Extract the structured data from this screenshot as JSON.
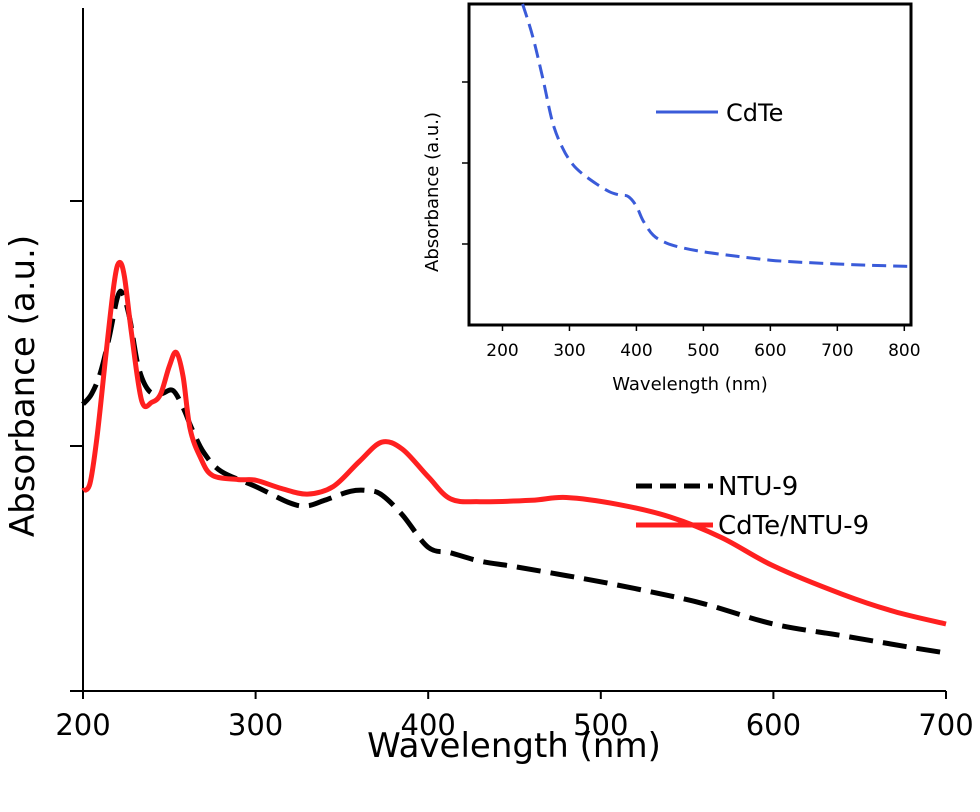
{
  "chart_data": [
    {
      "type": "line",
      "xlabel": "Wavelength (nm)",
      "ylabel": "Absorbance (a.u.)",
      "xlim": [
        200,
        700
      ],
      "ylim": [
        0,
        1
      ],
      "x_ticks": [
        "200",
        "300",
        "400",
        "500",
        "600",
        "700"
      ],
      "y_ticks_labeled": false,
      "legend_position": "right",
      "series": [
        {
          "name": "NTU-9",
          "style": "dashed",
          "color": "#000000",
          "points": [
            [
              200,
              0.415
            ],
            [
              205,
              0.43
            ],
            [
              210,
              0.46
            ],
            [
              215,
              0.51
            ],
            [
              220,
              0.57
            ],
            [
              223,
              0.575
            ],
            [
              227,
              0.54
            ],
            [
              232,
              0.47
            ],
            [
              238,
              0.435
            ],
            [
              245,
              0.43
            ],
            [
              252,
              0.435
            ],
            [
              258,
              0.41
            ],
            [
              263,
              0.38
            ],
            [
              270,
              0.345
            ],
            [
              280,
              0.318
            ],
            [
              300,
              0.296
            ],
            [
              320,
              0.272
            ],
            [
              330,
              0.268
            ],
            [
              340,
              0.276
            ],
            [
              355,
              0.289
            ],
            [
              365,
              0.29
            ],
            [
              373,
              0.284
            ],
            [
              385,
              0.255
            ],
            [
              400,
              0.208
            ],
            [
              413,
              0.2
            ],
            [
              430,
              0.188
            ],
            [
              450,
              0.18
            ],
            [
              480,
              0.167
            ],
            [
              500,
              0.158
            ],
            [
              530,
              0.143
            ],
            [
              560,
              0.126
            ],
            [
              600,
              0.097
            ],
            [
              640,
              0.08
            ],
            [
              680,
              0.063
            ],
            [
              700,
              0.055
            ]
          ]
        },
        {
          "name": "CdTe/NTU-9",
          "style": "solid",
          "color": "#ff2020",
          "points": [
            [
              200,
              0.29
            ],
            [
              204,
              0.3
            ],
            [
              208,
              0.365
            ],
            [
              213,
              0.48
            ],
            [
              218,
              0.59
            ],
            [
              221,
              0.62
            ],
            [
              224,
              0.6
            ],
            [
              228,
              0.52
            ],
            [
              234,
              0.42
            ],
            [
              240,
              0.418
            ],
            [
              245,
              0.43
            ],
            [
              250,
              0.47
            ],
            [
              254,
              0.49
            ],
            [
              258,
              0.455
            ],
            [
              262,
              0.38
            ],
            [
              268,
              0.338
            ],
            [
              275,
              0.312
            ],
            [
              290,
              0.306
            ],
            [
              300,
              0.305
            ],
            [
              315,
              0.293
            ],
            [
              330,
              0.285
            ],
            [
              345,
              0.296
            ],
            [
              360,
              0.332
            ],
            [
              373,
              0.36
            ],
            [
              385,
              0.35
            ],
            [
              400,
              0.31
            ],
            [
              413,
              0.278
            ],
            [
              430,
              0.274
            ],
            [
              460,
              0.276
            ],
            [
              480,
              0.28
            ],
            [
              510,
              0.27
            ],
            [
              540,
              0.252
            ],
            [
              570,
              0.222
            ],
            [
              600,
              0.181
            ],
            [
              640,
              0.14
            ],
            [
              670,
              0.115
            ],
            [
              700,
              0.097
            ]
          ]
        }
      ]
    },
    {
      "type": "line",
      "inset": true,
      "xlabel": "Wavelength (nm)",
      "ylabel": "Absorbance (a.u.)",
      "xlim": [
        150,
        810
      ],
      "ylim": [
        0,
        1
      ],
      "x_ticks": [
        "200",
        "300",
        "400",
        "500",
        "600",
        "700",
        "800"
      ],
      "y_ticks_labeled": false,
      "legend_position": "top-right",
      "series": [
        {
          "name": "CdTe",
          "style": "dashed",
          "color": "#3a5bd9",
          "points": [
            [
              230,
              1.0
            ],
            [
              245,
              0.9
            ],
            [
              260,
              0.77
            ],
            [
              275,
              0.63
            ],
            [
              290,
              0.55
            ],
            [
              305,
              0.5
            ],
            [
              320,
              0.47
            ],
            [
              340,
              0.44
            ],
            [
              360,
              0.415
            ],
            [
              375,
              0.405
            ],
            [
              388,
              0.4
            ],
            [
              400,
              0.37
            ],
            [
              410,
              0.325
            ],
            [
              425,
              0.28
            ],
            [
              445,
              0.255
            ],
            [
              470,
              0.24
            ],
            [
              500,
              0.228
            ],
            [
              550,
              0.214
            ],
            [
              600,
              0.202
            ],
            [
              650,
              0.195
            ],
            [
              700,
              0.19
            ],
            [
              750,
              0.186
            ],
            [
              800,
              0.183
            ],
            [
              810,
              0.182
            ]
          ]
        }
      ]
    }
  ]
}
